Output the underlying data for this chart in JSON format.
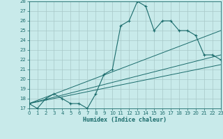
{
  "xlabel": "Humidex (Indice chaleur)",
  "bg_color": "#c8eaea",
  "grid_color": "#a8c8c8",
  "line_color": "#1a6b6b",
  "x_values": [
    0,
    1,
    2,
    3,
    4,
    5,
    6,
    7,
    8,
    9,
    10,
    11,
    12,
    13,
    14,
    15,
    16,
    17,
    18,
    19,
    20,
    21,
    22,
    23
  ],
  "y_main": [
    17.5,
    17.0,
    18.0,
    18.5,
    18.0,
    17.5,
    17.5,
    17.0,
    18.5,
    20.5,
    21.0,
    25.5,
    26.0,
    28.0,
    27.5,
    25.0,
    26.0,
    26.0,
    25.0,
    25.0,
    24.5,
    22.5,
    22.5,
    22.0
  ],
  "lines": [
    {
      "x": [
        0,
        23
      ],
      "y": [
        17.5,
        25.0
      ]
    },
    {
      "x": [
        0,
        23
      ],
      "y": [
        17.5,
        22.5
      ]
    },
    {
      "x": [
        0,
        23
      ],
      "y": [
        17.5,
        21.5
      ]
    }
  ],
  "ylim": [
    17,
    28
  ],
  "xlim": [
    0,
    23
  ],
  "yticks": [
    17,
    18,
    19,
    20,
    21,
    22,
    23,
    24,
    25,
    26,
    27,
    28
  ],
  "xticks": [
    0,
    1,
    2,
    3,
    4,
    5,
    6,
    7,
    8,
    9,
    10,
    11,
    12,
    13,
    14,
    15,
    16,
    17,
    18,
    19,
    20,
    21,
    22,
    23
  ],
  "xlabel_fontsize": 6,
  "tick_fontsize": 5
}
